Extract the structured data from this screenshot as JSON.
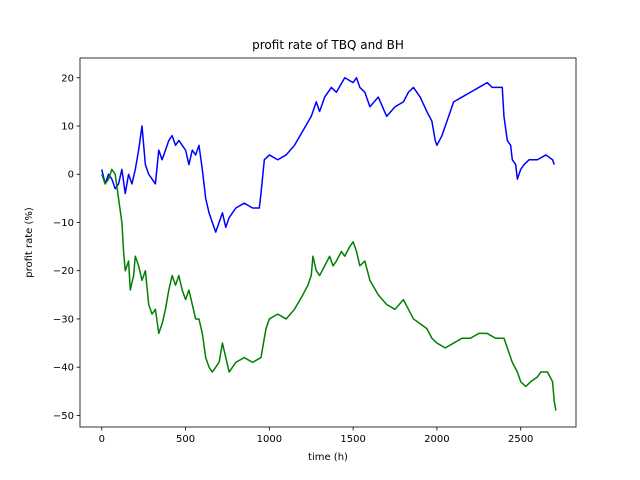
{
  "chart_data": {
    "type": "line",
    "title": "profit rate of TBQ and BH",
    "xlabel": "time (h)",
    "ylabel": "profit rate (%)",
    "xlim": [
      -130,
      2830
    ],
    "ylim": [
      -52.4,
      24.1
    ],
    "xticks": [
      0,
      500,
      1000,
      1500,
      2000,
      2500
    ],
    "yticks": [
      -50,
      -40,
      -30,
      -20,
      -10,
      0,
      10,
      20
    ],
    "grid": false,
    "legend": "none",
    "series": [
      {
        "color": "#0000ff",
        "points": [
          [
            0,
            1
          ],
          [
            20,
            -2
          ],
          [
            40,
            0
          ],
          [
            60,
            -1
          ],
          [
            80,
            -3
          ],
          [
            100,
            -2
          ],
          [
            120,
            1
          ],
          [
            140,
            -4
          ],
          [
            160,
            0
          ],
          [
            180,
            -2
          ],
          [
            200,
            1
          ],
          [
            220,
            5
          ],
          [
            240,
            10
          ],
          [
            260,
            2
          ],
          [
            280,
            0
          ],
          [
            300,
            -1
          ],
          [
            320,
            -2
          ],
          [
            340,
            5
          ],
          [
            360,
            3
          ],
          [
            380,
            5
          ],
          [
            400,
            7
          ],
          [
            420,
            8
          ],
          [
            440,
            6
          ],
          [
            460,
            7
          ],
          [
            480,
            6
          ],
          [
            500,
            5
          ],
          [
            520,
            2
          ],
          [
            540,
            5
          ],
          [
            560,
            4
          ],
          [
            580,
            6
          ],
          [
            600,
            1
          ],
          [
            620,
            -5
          ],
          [
            640,
            -8
          ],
          [
            660,
            -10
          ],
          [
            680,
            -12
          ],
          [
            700,
            -10
          ],
          [
            720,
            -8
          ],
          [
            740,
            -11
          ],
          [
            760,
            -9
          ],
          [
            780,
            -8
          ],
          [
            800,
            -7
          ],
          [
            850,
            -6
          ],
          [
            900,
            -7
          ],
          [
            940,
            -7
          ],
          [
            950,
            -4
          ],
          [
            970,
            3
          ],
          [
            1000,
            4
          ],
          [
            1050,
            3
          ],
          [
            1100,
            4
          ],
          [
            1150,
            6
          ],
          [
            1200,
            9
          ],
          [
            1250,
            12
          ],
          [
            1280,
            15
          ],
          [
            1300,
            13
          ],
          [
            1330,
            16
          ],
          [
            1370,
            18
          ],
          [
            1400,
            17
          ],
          [
            1450,
            20
          ],
          [
            1500,
            19
          ],
          [
            1520,
            20
          ],
          [
            1540,
            18
          ],
          [
            1570,
            17
          ],
          [
            1600,
            14
          ],
          [
            1650,
            16
          ],
          [
            1700,
            12
          ],
          [
            1750,
            14
          ],
          [
            1800,
            15
          ],
          [
            1830,
            17
          ],
          [
            1860,
            18
          ],
          [
            1900,
            16
          ],
          [
            1940,
            13
          ],
          [
            1970,
            11
          ],
          [
            1990,
            7
          ],
          [
            2000,
            6
          ],
          [
            2030,
            8
          ],
          [
            2060,
            11
          ],
          [
            2080,
            13
          ],
          [
            2100,
            15
          ],
          [
            2150,
            16
          ],
          [
            2200,
            17
          ],
          [
            2250,
            18
          ],
          [
            2300,
            19
          ],
          [
            2330,
            18
          ],
          [
            2360,
            18
          ],
          [
            2390,
            18
          ],
          [
            2400,
            12
          ],
          [
            2420,
            7
          ],
          [
            2440,
            6
          ],
          [
            2450,
            3
          ],
          [
            2470,
            2
          ],
          [
            2480,
            -1
          ],
          [
            2500,
            1
          ],
          [
            2520,
            2
          ],
          [
            2550,
            3
          ],
          [
            2600,
            3
          ],
          [
            2650,
            4
          ],
          [
            2690,
            3
          ],
          [
            2700,
            2
          ]
        ]
      },
      {
        "color": "#008000",
        "points": [
          [
            0,
            0
          ],
          [
            20,
            -2
          ],
          [
            40,
            -1
          ],
          [
            60,
            1
          ],
          [
            80,
            0
          ],
          [
            100,
            -5
          ],
          [
            120,
            -10
          ],
          [
            130,
            -16
          ],
          [
            140,
            -20
          ],
          [
            160,
            -18
          ],
          [
            170,
            -24
          ],
          [
            190,
            -21
          ],
          [
            200,
            -17
          ],
          [
            220,
            -19
          ],
          [
            240,
            -22
          ],
          [
            260,
            -20
          ],
          [
            280,
            -27
          ],
          [
            300,
            -29
          ],
          [
            320,
            -28
          ],
          [
            340,
            -33
          ],
          [
            360,
            -31
          ],
          [
            380,
            -28
          ],
          [
            400,
            -24
          ],
          [
            420,
            -21
          ],
          [
            440,
            -23
          ],
          [
            460,
            -21
          ],
          [
            480,
            -24
          ],
          [
            500,
            -26
          ],
          [
            520,
            -24
          ],
          [
            540,
            -27
          ],
          [
            560,
            -30
          ],
          [
            580,
            -30
          ],
          [
            600,
            -33
          ],
          [
            620,
            -38
          ],
          [
            640,
            -40
          ],
          [
            660,
            -41
          ],
          [
            680,
            -40
          ],
          [
            700,
            -39
          ],
          [
            720,
            -35
          ],
          [
            740,
            -38
          ],
          [
            760,
            -41
          ],
          [
            800,
            -39
          ],
          [
            850,
            -38
          ],
          [
            900,
            -39
          ],
          [
            950,
            -38
          ],
          [
            980,
            -32
          ],
          [
            1000,
            -30
          ],
          [
            1050,
            -29
          ],
          [
            1100,
            -30
          ],
          [
            1150,
            -28
          ],
          [
            1200,
            -25
          ],
          [
            1230,
            -23
          ],
          [
            1250,
            -21
          ],
          [
            1260,
            -17
          ],
          [
            1280,
            -20
          ],
          [
            1300,
            -21
          ],
          [
            1330,
            -19
          ],
          [
            1360,
            -17
          ],
          [
            1380,
            -19
          ],
          [
            1400,
            -18
          ],
          [
            1430,
            -16
          ],
          [
            1450,
            -17
          ],
          [
            1480,
            -15
          ],
          [
            1500,
            -14
          ],
          [
            1520,
            -16
          ],
          [
            1540,
            -19
          ],
          [
            1570,
            -18
          ],
          [
            1600,
            -22
          ],
          [
            1650,
            -25
          ],
          [
            1700,
            -27
          ],
          [
            1750,
            -28
          ],
          [
            1800,
            -26
          ],
          [
            1830,
            -28
          ],
          [
            1860,
            -30
          ],
          [
            1900,
            -31
          ],
          [
            1940,
            -32
          ],
          [
            1970,
            -34
          ],
          [
            2000,
            -35
          ],
          [
            2050,
            -36
          ],
          [
            2100,
            -35
          ],
          [
            2150,
            -34
          ],
          [
            2200,
            -34
          ],
          [
            2250,
            -33
          ],
          [
            2300,
            -33
          ],
          [
            2350,
            -34
          ],
          [
            2400,
            -34
          ],
          [
            2420,
            -36
          ],
          [
            2450,
            -39
          ],
          [
            2480,
            -41
          ],
          [
            2500,
            -43
          ],
          [
            2530,
            -44
          ],
          [
            2560,
            -43
          ],
          [
            2600,
            -42
          ],
          [
            2620,
            -41
          ],
          [
            2660,
            -41
          ],
          [
            2690,
            -43
          ],
          [
            2700,
            -47
          ],
          [
            2710,
            -49
          ]
        ]
      }
    ]
  }
}
